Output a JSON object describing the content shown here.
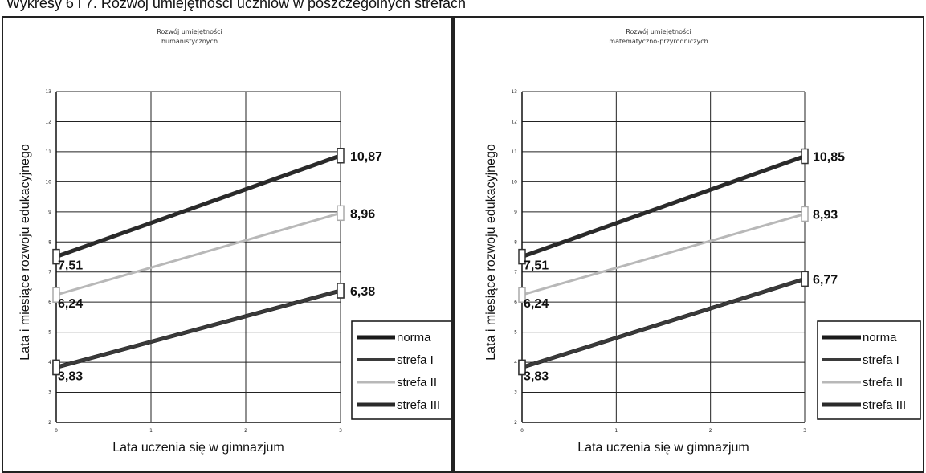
{
  "page_title": "Wykresy 6 i 7. Rozwój umiejętności uczniów w poszczególnych strefach",
  "chart_data": [
    {
      "type": "line",
      "title": "Rozwój umiejętności humanistycznych",
      "title_lines": [
        "Rozwój umiejętności",
        "humanistycznych"
      ],
      "xlabel": "Lata uczenia się w gimnazjum",
      "ylabel": "Lata i miesiące rozwoju edukacyjnego",
      "x": [
        0,
        3
      ],
      "x_ticks": [
        "0",
        "1",
        "2",
        "3"
      ],
      "xlim": [
        0,
        3
      ],
      "ylim": [
        2,
        13
      ],
      "y_ticks": [
        "2",
        "3",
        "4",
        "5",
        "6",
        "7",
        "8",
        "9",
        "10",
        "11",
        "12",
        "13"
      ],
      "grid": true,
      "legend_position": "right",
      "series": [
        {
          "name": "norma",
          "values": [
            3.83,
            6.38
          ],
          "color": "#1a1a1a"
        },
        {
          "name": "strefa I",
          "values": [
            3.83,
            6.38
          ],
          "color": "#3a3a3a"
        },
        {
          "name": "strefa II",
          "values": [
            6.24,
            8.96
          ],
          "color": "#b8b8b8"
        },
        {
          "name": "strefa III",
          "values": [
            7.51,
            10.87
          ],
          "color": "#2a2a2a"
        }
      ],
      "data_labels": [
        {
          "x": 0,
          "y": 7.51,
          "text": "7,51"
        },
        {
          "x": 0,
          "y": 6.24,
          "text": "6,24"
        },
        {
          "x": 0,
          "y": 3.83,
          "text": "3,83"
        },
        {
          "x": 3,
          "y": 10.87,
          "text": "10,87"
        },
        {
          "x": 3,
          "y": 8.96,
          "text": "8,96"
        },
        {
          "x": 3,
          "y": 6.38,
          "text": "6,38"
        }
      ]
    },
    {
      "type": "line",
      "title": "Rozwój umiejętności matematyczno-przyrodniczych",
      "title_lines": [
        "Rozwój umiejętności",
        "matematyczno-przyrodniczych"
      ],
      "xlabel": "Lata uczenia się w gimnazjum",
      "ylabel": "Lata i miesiące rozwoju edukacyjnego",
      "x": [
        0,
        3
      ],
      "x_ticks": [
        "0",
        "1",
        "2",
        "3"
      ],
      "xlim": [
        0,
        3
      ],
      "ylim": [
        2,
        13
      ],
      "y_ticks": [
        "2",
        "3",
        "4",
        "5",
        "6",
        "7",
        "8",
        "9",
        "10",
        "11",
        "12",
        "13"
      ],
      "grid": true,
      "legend_position": "right",
      "series": [
        {
          "name": "norma",
          "values": [
            3.83,
            6.77
          ],
          "color": "#1a1a1a"
        },
        {
          "name": "strefa I",
          "values": [
            3.83,
            6.77
          ],
          "color": "#3a3a3a"
        },
        {
          "name": "strefa II",
          "values": [
            6.24,
            8.93
          ],
          "color": "#b8b8b8"
        },
        {
          "name": "strefa III",
          "values": [
            7.51,
            10.85
          ],
          "color": "#2a2a2a"
        }
      ],
      "data_labels": [
        {
          "x": 0,
          "y": 7.51,
          "text": "7,51"
        },
        {
          "x": 0,
          "y": 6.24,
          "text": "6,24"
        },
        {
          "x": 0,
          "y": 3.83,
          "text": "3,83"
        },
        {
          "x": 3,
          "y": 10.85,
          "text": "10,85"
        },
        {
          "x": 3,
          "y": 8.93,
          "text": "8,93"
        },
        {
          "x": 3,
          "y": 6.77,
          "text": "6,77"
        }
      ]
    }
  ]
}
